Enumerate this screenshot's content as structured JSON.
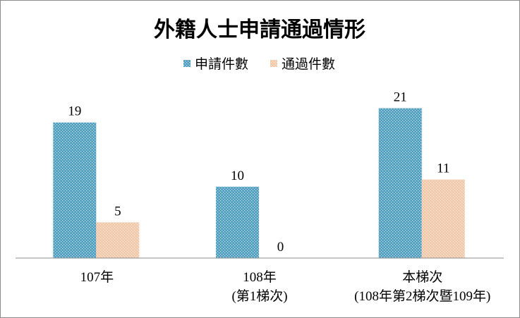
{
  "chart_data": {
    "type": "bar",
    "title": "外籍人士申請通過情形",
    "categories": [
      [
        "107年"
      ],
      [
        "108年",
        "(第1梯次)"
      ],
      [
        "本梯次",
        "(108年第2梯次暨109年)"
      ]
    ],
    "series": [
      {
        "name": "申請件數",
        "values": [
          19,
          10,
          21
        ],
        "color": "#4f9ec2",
        "pattern": "dotted-blue"
      },
      {
        "name": "通過件數",
        "values": [
          5,
          0,
          11
        ],
        "color": "#f2c8a8",
        "pattern": "dotted-peach"
      }
    ],
    "ylim": [
      0,
      25
    ],
    "grid": false,
    "legend_position": "top",
    "data_labels": true,
    "xlabel": "",
    "ylabel": ""
  }
}
